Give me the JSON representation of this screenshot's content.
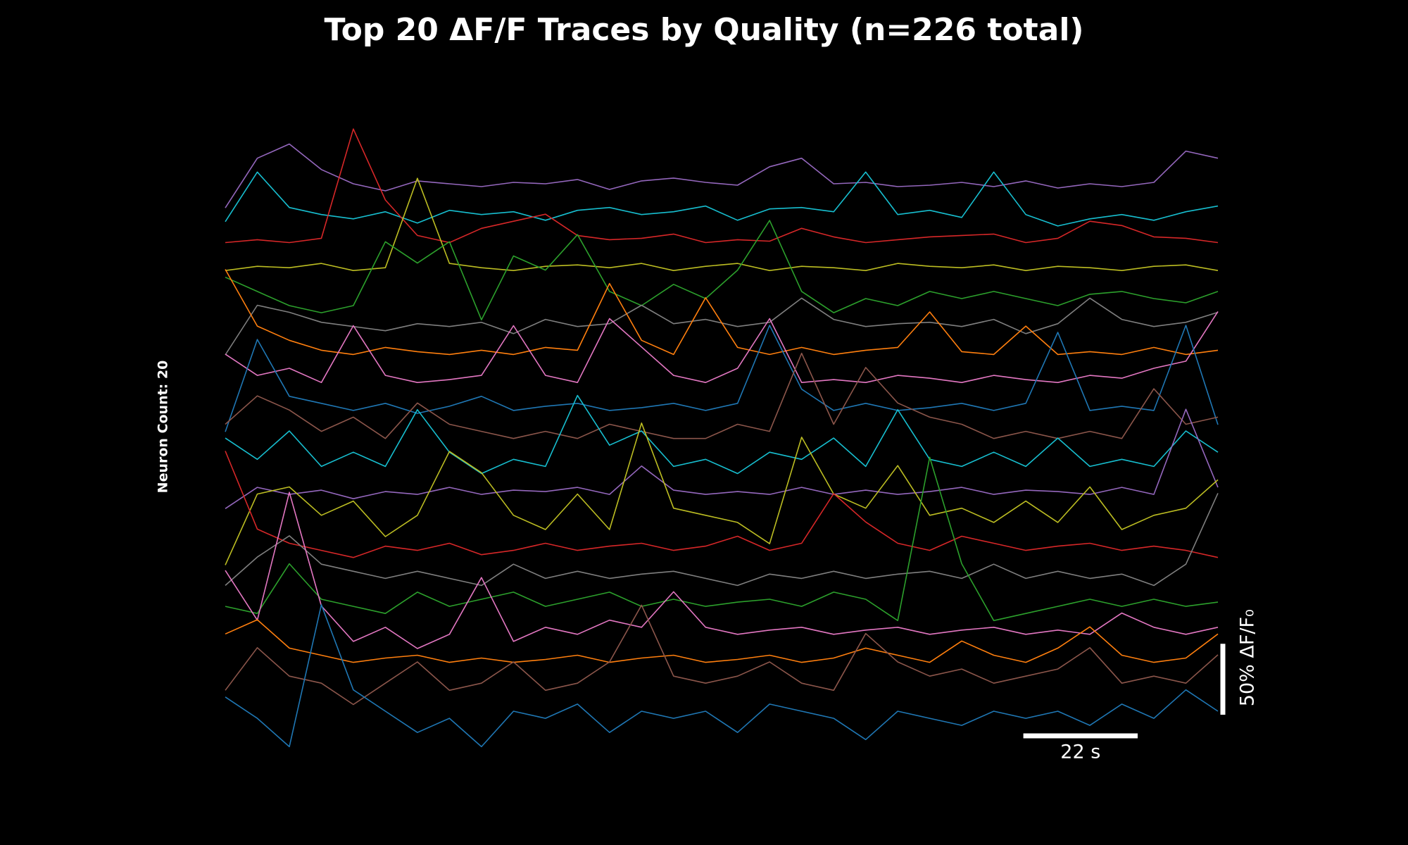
{
  "chart_data": {
    "type": "line",
    "title": "Top 20 ΔF/F Traces by Quality (n=226 total)",
    "annotation": "Neuron Count: 20",
    "xlim": [
      0,
      191
    ],
    "scale_x": {
      "value": 22,
      "label": "22 s"
    },
    "scale_y": {
      "value": 50,
      "label": "50% ΔF/F₀"
    },
    "series": [
      {
        "color": "#9467bd",
        "values": [
          -15,
          20,
          30,
          12,
          2,
          -3,
          4,
          2,
          0,
          3,
          2,
          5,
          -2,
          4,
          6,
          3,
          1,
          14,
          20,
          2,
          3,
          0,
          1,
          3,
          0,
          4,
          -1,
          2,
          0,
          3,
          25,
          20
        ]
      },
      {
        "color": "#17becf",
        "values": [
          -5,
          30,
          5,
          0,
          -3,
          2,
          -6,
          3,
          0,
          2,
          -4,
          3,
          5,
          0,
          2,
          6,
          -4,
          4,
          5,
          2,
          30,
          0,
          3,
          -2,
          30,
          0,
          -8,
          -3,
          0,
          -4,
          2,
          6
        ]
      },
      {
        "color": "#d62728",
        "values": [
          0,
          2,
          0,
          3,
          80,
          30,
          5,
          0,
          10,
          15,
          20,
          5,
          2,
          3,
          6,
          0,
          2,
          1,
          10,
          4,
          0,
          2,
          4,
          5,
          6,
          0,
          3,
          15,
          12,
          4,
          3,
          0
        ]
      },
      {
        "color": "#bcbd22",
        "values": [
          0,
          3,
          2,
          5,
          0,
          2,
          65,
          5,
          2,
          0,
          3,
          4,
          2,
          5,
          0,
          3,
          5,
          0,
          3,
          2,
          0,
          5,
          3,
          2,
          4,
          0,
          3,
          2,
          0,
          3,
          4,
          0
        ]
      },
      {
        "color": "#2ca02c",
        "values": [
          15,
          5,
          -5,
          -10,
          -5,
          40,
          25,
          40,
          -15,
          30,
          20,
          45,
          5,
          -5,
          10,
          0,
          20,
          55,
          5,
          -10,
          0,
          -5,
          5,
          0,
          5,
          0,
          -5,
          3,
          5,
          0,
          -3,
          5
        ]
      },
      {
        "color": "#7f7f7f",
        "values": [
          -20,
          15,
          10,
          3,
          0,
          -3,
          2,
          0,
          3,
          -5,
          5,
          0,
          2,
          15,
          2,
          5,
          0,
          3,
          20,
          5,
          0,
          2,
          3,
          0,
          5,
          -5,
          2,
          20,
          5,
          0,
          3,
          10
        ]
      },
      {
        "color": "#ff7f0e",
        "values": [
          60,
          20,
          10,
          3,
          0,
          5,
          2,
          0,
          3,
          0,
          5,
          3,
          50,
          10,
          0,
          40,
          5,
          0,
          5,
          0,
          3,
          5,
          30,
          2,
          0,
          20,
          0,
          2,
          0,
          5,
          0,
          3
        ]
      },
      {
        "color": "#e377c2",
        "values": [
          20,
          5,
          10,
          0,
          40,
          5,
          0,
          2,
          5,
          40,
          5,
          0,
          45,
          25,
          5,
          0,
          10,
          45,
          0,
          2,
          0,
          5,
          3,
          0,
          5,
          2,
          0,
          5,
          3,
          10,
          15,
          50
        ]
      },
      {
        "color": "#1f77b4",
        "values": [
          -15,
          50,
          10,
          5,
          0,
          5,
          -2,
          3,
          10,
          0,
          3,
          5,
          0,
          2,
          5,
          0,
          5,
          60,
          15,
          0,
          5,
          0,
          2,
          5,
          0,
          5,
          55,
          0,
          3,
          0,
          60,
          -10
        ]
      },
      {
        "color": "#8c564b",
        "values": [
          10,
          30,
          20,
          5,
          15,
          0,
          25,
          10,
          5,
          0,
          5,
          0,
          10,
          5,
          0,
          0,
          10,
          5,
          60,
          10,
          50,
          25,
          15,
          10,
          0,
          5,
          0,
          5,
          0,
          35,
          10,
          15
        ]
      },
      {
        "color": "#17becf",
        "values": [
          20,
          5,
          25,
          0,
          10,
          0,
          40,
          10,
          -5,
          5,
          0,
          50,
          15,
          25,
          0,
          5,
          -5,
          10,
          5,
          20,
          0,
          40,
          5,
          0,
          10,
          0,
          20,
          0,
          5,
          0,
          25,
          10
        ]
      },
      {
        "color": "#9467bd",
        "values": [
          -10,
          5,
          0,
          3,
          -3,
          2,
          0,
          5,
          0,
          3,
          2,
          5,
          0,
          20,
          3,
          0,
          2,
          0,
          5,
          0,
          3,
          0,
          2,
          5,
          0,
          3,
          2,
          0,
          5,
          0,
          60,
          5
        ]
      },
      {
        "color": "#bcbd22",
        "values": [
          -30,
          20,
          25,
          5,
          15,
          -10,
          5,
          50,
          35,
          5,
          -5,
          20,
          -5,
          70,
          10,
          5,
          0,
          -15,
          60,
          20,
          10,
          40,
          5,
          10,
          0,
          15,
          0,
          25,
          -5,
          5,
          10,
          30
        ]
      },
      {
        "color": "#d62728",
        "values": [
          70,
          15,
          5,
          0,
          -5,
          3,
          0,
          5,
          -3,
          0,
          5,
          0,
          3,
          5,
          0,
          3,
          10,
          0,
          5,
          40,
          20,
          5,
          0,
          10,
          5,
          0,
          3,
          5,
          0,
          3,
          0,
          -5
        ]
      },
      {
        "color": "#7f7f7f",
        "values": [
          -5,
          15,
          30,
          10,
          5,
          0,
          5,
          0,
          -5,
          10,
          0,
          5,
          0,
          3,
          5,
          0,
          -5,
          3,
          0,
          5,
          0,
          3,
          5,
          0,
          10,
          0,
          5,
          0,
          3,
          -5,
          10,
          60
        ]
      },
      {
        "color": "#2ca02c",
        "values": [
          0,
          -5,
          30,
          5,
          0,
          -5,
          10,
          0,
          5,
          10,
          0,
          5,
          10,
          0,
          5,
          0,
          3,
          5,
          0,
          10,
          5,
          -10,
          105,
          30,
          -10,
          -5,
          0,
          5,
          0,
          5,
          0,
          3
        ]
      },
      {
        "color": "#e377c2",
        "values": [
          45,
          10,
          100,
          20,
          -5,
          5,
          -10,
          0,
          40,
          -5,
          5,
          0,
          10,
          5,
          30,
          5,
          0,
          3,
          5,
          0,
          3,
          5,
          0,
          3,
          5,
          0,
          3,
          0,
          15,
          5,
          0,
          5
        ]
      },
      {
        "color": "#ff7f0e",
        "values": [
          20,
          30,
          10,
          5,
          0,
          3,
          5,
          0,
          3,
          0,
          2,
          5,
          0,
          3,
          5,
          0,
          2,
          5,
          0,
          3,
          10,
          5,
          0,
          15,
          5,
          0,
          10,
          25,
          5,
          0,
          3,
          20
        ]
      },
      {
        "color": "#8c564b",
        "values": [
          0,
          30,
          10,
          5,
          -10,
          5,
          20,
          0,
          5,
          20,
          0,
          5,
          20,
          60,
          10,
          5,
          10,
          20,
          5,
          0,
          40,
          20,
          10,
          15,
          5,
          10,
          15,
          30,
          5,
          10,
          5,
          25
        ]
      },
      {
        "color": "#1f77b4",
        "values": [
          15,
          0,
          -20,
          80,
          20,
          5,
          -10,
          0,
          -20,
          5,
          0,
          10,
          -10,
          5,
          0,
          5,
          -10,
          10,
          5,
          0,
          -15,
          5,
          0,
          -5,
          5,
          0,
          5,
          -5,
          10,
          0,
          20,
          5
        ]
      }
    ]
  }
}
